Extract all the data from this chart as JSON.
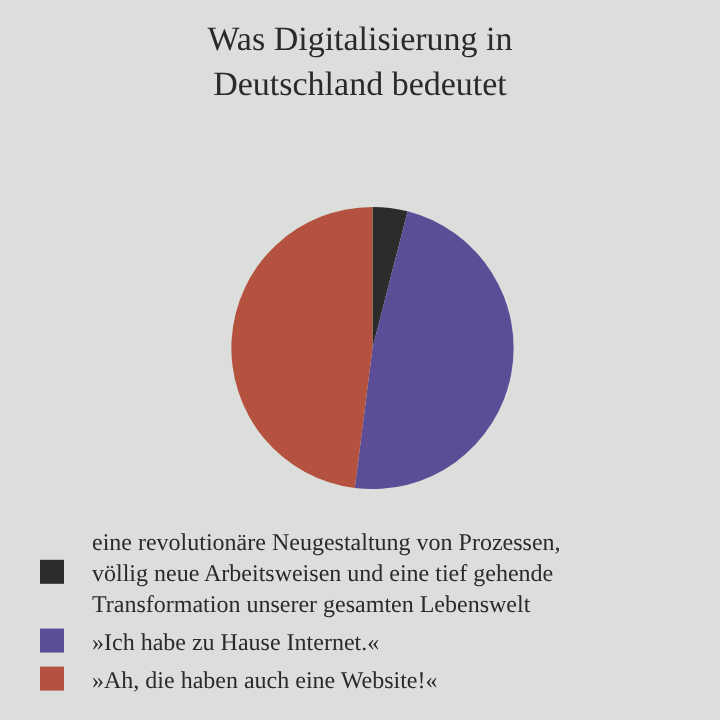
{
  "chart_data": {
    "type": "pie",
    "title": "Was Digitalisierung in Deutschland bedeutet",
    "categories": [
      "eine revolutionäre Neugestaltung von Prozessen, völlig neue Arbeitsweisen und eine tief gehende Transformation unserer gesamten Lebenswelt",
      "»Ich habe zu Hause Internet.«",
      "»Ah, die haben auch eine Website!«"
    ],
    "values": [
      4,
      48,
      48
    ],
    "colors": [
      "#2a2d2a",
      "#5b4e96",
      "#b5513f"
    ],
    "legend": "bottom"
  }
}
